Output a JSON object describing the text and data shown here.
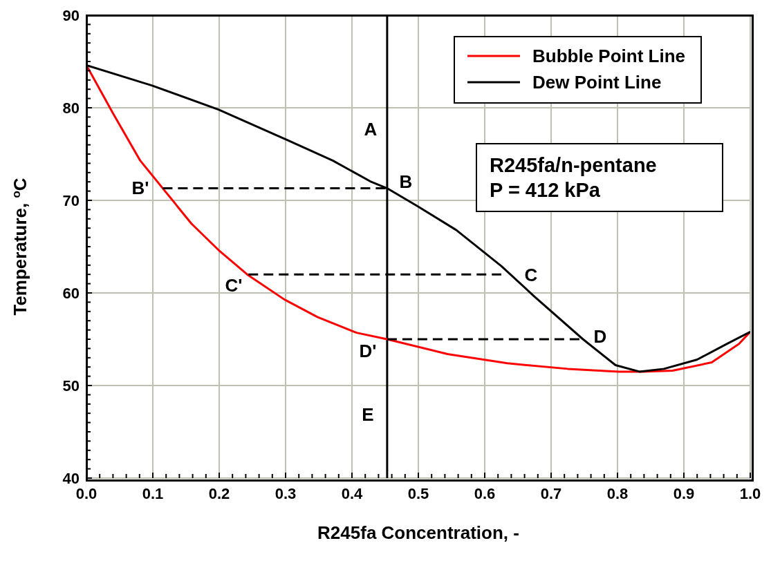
{
  "chart_data": {
    "type": "line",
    "xlabel": "R245fa Concentration, -",
    "ylabel": "Temperature, $^{o}$C",
    "xlim": [
      0,
      1
    ],
    "ylim": [
      40,
      90
    ],
    "xticks": [
      {
        "value": 0,
        "label": "0.0"
      },
      {
        "value": 0.02,
        "label": null
      },
      {
        "value": 0.04,
        "label": null
      },
      {
        "value": 0.06,
        "label": null
      },
      {
        "value": 0.08,
        "label": null
      },
      {
        "value": 0.1,
        "label": "0.1"
      },
      {
        "value": 0.12,
        "label": null
      },
      {
        "value": 0.14,
        "label": null
      },
      {
        "value": 0.16,
        "label": null
      },
      {
        "value": 0.18,
        "label": null
      },
      {
        "value": 0.2,
        "label": "0.2"
      },
      {
        "value": 0.22,
        "label": null
      },
      {
        "value": 0.24,
        "label": null
      },
      {
        "value": 0.26,
        "label": null
      },
      {
        "value": 0.28,
        "label": null
      },
      {
        "value": 0.3,
        "label": "0.3"
      },
      {
        "value": 0.32,
        "label": null
      },
      {
        "value": 0.34,
        "label": null
      },
      {
        "value": 0.36,
        "label": null
      },
      {
        "value": 0.38,
        "label": null
      },
      {
        "value": 0.4,
        "label": "0.4"
      },
      {
        "value": 0.42,
        "label": null
      },
      {
        "value": 0.44,
        "label": null
      },
      {
        "value": 0.46,
        "label": null
      },
      {
        "value": 0.48,
        "label": null
      },
      {
        "value": 0.5,
        "label": "0.5"
      },
      {
        "value": 0.52,
        "label": null
      },
      {
        "value": 0.54,
        "label": null
      },
      {
        "value": 0.56,
        "label": null
      },
      {
        "value": 0.58,
        "label": null
      },
      {
        "value": 0.6,
        "label": "0.6"
      },
      {
        "value": 0.62,
        "label": null
      },
      {
        "value": 0.64,
        "label": null
      },
      {
        "value": 0.66,
        "label": null
      },
      {
        "value": 0.68,
        "label": null
      },
      {
        "value": 0.7,
        "label": "0.7"
      },
      {
        "value": 0.72,
        "label": null
      },
      {
        "value": 0.74,
        "label": null
      },
      {
        "value": 0.76,
        "label": null
      },
      {
        "value": 0.78,
        "label": null
      },
      {
        "value": 0.8,
        "label": "0.8"
      },
      {
        "value": 0.82,
        "label": null
      },
      {
        "value": 0.84,
        "label": null
      },
      {
        "value": 0.86,
        "label": null
      },
      {
        "value": 0.88,
        "label": null
      },
      {
        "value": 0.9,
        "label": "0.9"
      },
      {
        "value": 0.92,
        "label": null
      },
      {
        "value": 0.94,
        "label": null
      },
      {
        "value": 0.96,
        "label": null
      },
      {
        "value": 0.98,
        "label": null
      },
      {
        "value": 1,
        "label": "1.0"
      }
    ],
    "yticks": [
      40,
      {
        "value": 41,
        "label": null
      },
      {
        "value": 42,
        "label": null
      },
      {
        "value": 43,
        "label": null
      },
      {
        "value": 44,
        "label": null
      },
      {
        "value": 45,
        "label": null
      },
      {
        "value": 46,
        "label": null
      },
      {
        "value": 47,
        "label": null
      },
      {
        "value": 48,
        "label": null
      },
      {
        "value": 49,
        "label": null
      },
      50,
      {
        "value": 51,
        "label": null
      },
      {
        "value": 52,
        "label": null
      },
      {
        "value": 53,
        "label": null
      },
      {
        "value": 54,
        "label": null
      },
      {
        "value": 55,
        "label": null
      },
      {
        "value": 56,
        "label": null
      },
      {
        "value": 57,
        "label": null
      },
      {
        "value": 58,
        "label": null
      },
      {
        "value": 59,
        "label": null
      },
      60,
      {
        "value": 61,
        "label": null
      },
      {
        "value": 62,
        "label": null
      },
      {
        "value": 63,
        "label": null
      },
      {
        "value": 64,
        "label": null
      },
      {
        "value": 65,
        "label": null
      },
      {
        "value": 66,
        "label": null
      },
      {
        "value": 67,
        "label": null
      },
      {
        "value": 68,
        "label": null
      },
      {
        "value": 69,
        "label": null
      },
      70,
      {
        "value": 71,
        "label": null
      },
      {
        "value": 72,
        "label": null
      },
      {
        "value": 73,
        "label": null
      },
      {
        "value": 74,
        "label": null
      },
      {
        "value": 75,
        "label": null
      },
      {
        "value": 76,
        "label": null
      },
      {
        "value": 77,
        "label": null
      },
      {
        "value": 78,
        "label": null
      },
      {
        "value": 79,
        "label": null
      },
      80,
      {
        "value": 81,
        "label": null
      },
      {
        "value": 82,
        "label": null
      },
      {
        "value": 83,
        "label": null
      },
      {
        "value": 84,
        "label": null
      },
      {
        "value": 85,
        "label": null
      },
      {
        "value": 86,
        "label": null
      },
      {
        "value": 87,
        "label": null
      },
      {
        "value": 88,
        "label": null
      },
      {
        "value": 89,
        "label": null
      },
      90
    ],
    "grid": true,
    "legend": "top right",
    "line_style": "solid",
    "series": [
      {
        "name": "Bubble Point Line",
        "color": "#ff0000",
        "x": [
          0,
          0.04,
          0.081,
          0.115,
          0.158,
          0.201,
          0.244,
          0.298,
          0.348,
          0.407,
          0.453,
          0.544,
          0.634,
          0.725,
          0.802,
          0.838,
          0.883,
          0.942,
          0.983,
          1
        ],
        "values": [
          84.6,
          79.4,
          74.3,
          71.3,
          67.5,
          64.5,
          61.9,
          59.3,
          57.4,
          55.7,
          55.0,
          53.4,
          52.4,
          51.8,
          51.5,
          51.5,
          51.6,
          52.5,
          54.5,
          55.8
        ]
      },
      {
        "name": "Dew Point Line",
        "color": "#000000",
        "x": [
          0,
          0.099,
          0.199,
          0.303,
          0.371,
          0.429,
          0.453,
          0.498,
          0.557,
          0.625,
          0.675,
          0.748,
          0.797,
          0.833,
          0.87,
          0.92,
          0.965,
          1
        ],
        "values": [
          84.6,
          82.4,
          79.8,
          76.5,
          74.3,
          72.0,
          71.3,
          69.4,
          66.8,
          62.9,
          59.6,
          55.0,
          52.2,
          51.5,
          51.8,
          52.8,
          54.5,
          55.8
        ]
      },
      {
        "color": "#000000",
        "line_style": "dashed",
        "x": [
          0.115,
          0.453
        ],
        "values": [
          71.3,
          71.3
        ]
      },
      {
        "color": "#000000",
        "line_style": "dashed",
        "x": [
          0.244,
          0.625
        ],
        "values": [
          62.0,
          62.0
        ]
      },
      {
        "color": "#000000",
        "line_style": "dashed",
        "x": [
          0.453,
          0.748
        ],
        "values": [
          55.0,
          55.0
        ]
      }
    ],
    "ref_lines": [
      {
        "axis": "x",
        "value": 0.453,
        "label": null,
        "color": "#000000",
        "line_style": "solid"
      }
    ],
    "annotations": [
      "A",
      "B",
      "B'",
      "C'",
      "C",
      "D",
      "D'",
      "E",
      "R245fa/n-pentane",
      "P = 412 kPa"
    ]
  }
}
